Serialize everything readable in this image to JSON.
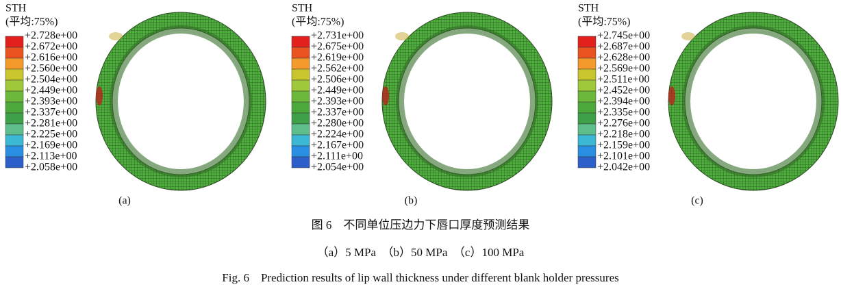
{
  "panels": [
    {
      "legend_title": "STH",
      "legend_subtitle": "(平均:75%)",
      "legend_labels": [
        "+2.728e+00",
        "+2.672e+00",
        "+2.616e+00",
        "+2.560e+00",
        "+2.504e+00",
        "+2.449e+00",
        "+2.393e+00",
        "+2.337e+00",
        "+2.281e+00",
        "+2.225e+00",
        "+2.169e+00",
        "+2.113e+00",
        "+2.058e+00"
      ],
      "label": "(a)"
    },
    {
      "legend_title": "STH",
      "legend_subtitle": "(平均:75%)",
      "legend_labels": [
        "+2.731e+00",
        "+2.675e+00",
        "+2.619e+00",
        "+2.562e+00",
        "+2.506e+00",
        "+2.449e+00",
        "+2.393e+00",
        "+2.337e+00",
        "+2.280e+00",
        "+2.224e+00",
        "+2.167e+00",
        "+2.111e+00",
        "+2.054e+00"
      ],
      "label": "(b)"
    },
    {
      "legend_title": "STH",
      "legend_subtitle": "(平均:75%)",
      "legend_labels": [
        "+2.745e+00",
        "+2.687e+00",
        "+2.628e+00",
        "+2.569e+00",
        "+2.511e+00",
        "+2.452e+00",
        "+2.394e+00",
        "+2.335e+00",
        "+2.276e+00",
        "+2.218e+00",
        "+2.159e+00",
        "+2.101e+00",
        "+2.042e+00"
      ],
      "label": "(c)"
    }
  ],
  "caption": {
    "zh_title": "图 6　不同单位压边力下唇口厚度预测结果",
    "zh_subtitle": "（a）5 MPa　（b）50 MPa　（c）100 MPa",
    "en_title": "Fig. 6　Prediction results of lip wall thickness under different blank holder pressures"
  }
}
